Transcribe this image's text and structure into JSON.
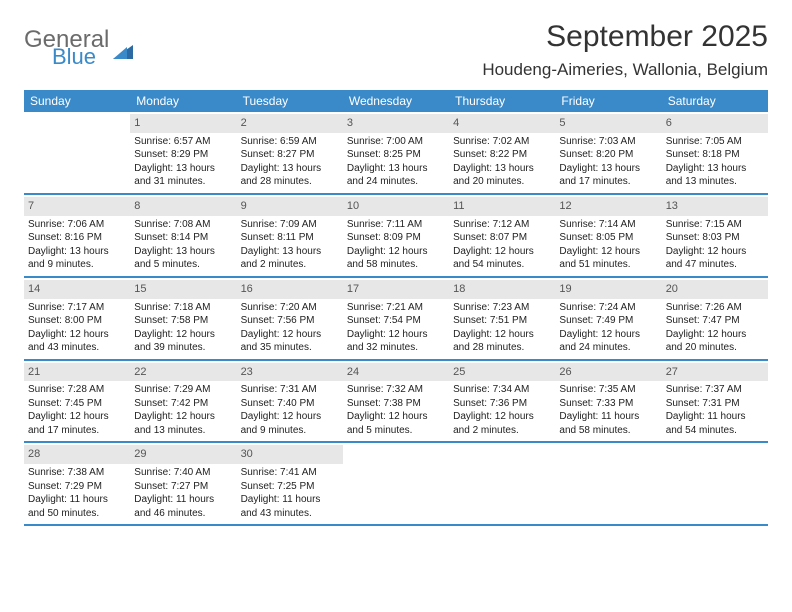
{
  "logo": {
    "text1": "General",
    "text2": "Blue"
  },
  "title": "September 2025",
  "location": "Houdeng-Aimeries, Wallonia, Belgium",
  "colors": {
    "header_bg": "#3a8ac9",
    "header_text": "#ffffff",
    "daynum_bg": "#e7e7e7",
    "daynum_text": "#555555",
    "body_text": "#222222",
    "border": "#3a8ac9"
  },
  "weekdays": [
    "Sunday",
    "Monday",
    "Tuesday",
    "Wednesday",
    "Thursday",
    "Friday",
    "Saturday"
  ],
  "weeks": [
    [
      {
        "n": "",
        "sunrise": "",
        "sunset": "",
        "daylight": ""
      },
      {
        "n": "1",
        "sunrise": "Sunrise: 6:57 AM",
        "sunset": "Sunset: 8:29 PM",
        "daylight": "Daylight: 13 hours and 31 minutes."
      },
      {
        "n": "2",
        "sunrise": "Sunrise: 6:59 AM",
        "sunset": "Sunset: 8:27 PM",
        "daylight": "Daylight: 13 hours and 28 minutes."
      },
      {
        "n": "3",
        "sunrise": "Sunrise: 7:00 AM",
        "sunset": "Sunset: 8:25 PM",
        "daylight": "Daylight: 13 hours and 24 minutes."
      },
      {
        "n": "4",
        "sunrise": "Sunrise: 7:02 AM",
        "sunset": "Sunset: 8:22 PM",
        "daylight": "Daylight: 13 hours and 20 minutes."
      },
      {
        "n": "5",
        "sunrise": "Sunrise: 7:03 AM",
        "sunset": "Sunset: 8:20 PM",
        "daylight": "Daylight: 13 hours and 17 minutes."
      },
      {
        "n": "6",
        "sunrise": "Sunrise: 7:05 AM",
        "sunset": "Sunset: 8:18 PM",
        "daylight": "Daylight: 13 hours and 13 minutes."
      }
    ],
    [
      {
        "n": "7",
        "sunrise": "Sunrise: 7:06 AM",
        "sunset": "Sunset: 8:16 PM",
        "daylight": "Daylight: 13 hours and 9 minutes."
      },
      {
        "n": "8",
        "sunrise": "Sunrise: 7:08 AM",
        "sunset": "Sunset: 8:14 PM",
        "daylight": "Daylight: 13 hours and 5 minutes."
      },
      {
        "n": "9",
        "sunrise": "Sunrise: 7:09 AM",
        "sunset": "Sunset: 8:11 PM",
        "daylight": "Daylight: 13 hours and 2 minutes."
      },
      {
        "n": "10",
        "sunrise": "Sunrise: 7:11 AM",
        "sunset": "Sunset: 8:09 PM",
        "daylight": "Daylight: 12 hours and 58 minutes."
      },
      {
        "n": "11",
        "sunrise": "Sunrise: 7:12 AM",
        "sunset": "Sunset: 8:07 PM",
        "daylight": "Daylight: 12 hours and 54 minutes."
      },
      {
        "n": "12",
        "sunrise": "Sunrise: 7:14 AM",
        "sunset": "Sunset: 8:05 PM",
        "daylight": "Daylight: 12 hours and 51 minutes."
      },
      {
        "n": "13",
        "sunrise": "Sunrise: 7:15 AM",
        "sunset": "Sunset: 8:03 PM",
        "daylight": "Daylight: 12 hours and 47 minutes."
      }
    ],
    [
      {
        "n": "14",
        "sunrise": "Sunrise: 7:17 AM",
        "sunset": "Sunset: 8:00 PM",
        "daylight": "Daylight: 12 hours and 43 minutes."
      },
      {
        "n": "15",
        "sunrise": "Sunrise: 7:18 AM",
        "sunset": "Sunset: 7:58 PM",
        "daylight": "Daylight: 12 hours and 39 minutes."
      },
      {
        "n": "16",
        "sunrise": "Sunrise: 7:20 AM",
        "sunset": "Sunset: 7:56 PM",
        "daylight": "Daylight: 12 hours and 35 minutes."
      },
      {
        "n": "17",
        "sunrise": "Sunrise: 7:21 AM",
        "sunset": "Sunset: 7:54 PM",
        "daylight": "Daylight: 12 hours and 32 minutes."
      },
      {
        "n": "18",
        "sunrise": "Sunrise: 7:23 AM",
        "sunset": "Sunset: 7:51 PM",
        "daylight": "Daylight: 12 hours and 28 minutes."
      },
      {
        "n": "19",
        "sunrise": "Sunrise: 7:24 AM",
        "sunset": "Sunset: 7:49 PM",
        "daylight": "Daylight: 12 hours and 24 minutes."
      },
      {
        "n": "20",
        "sunrise": "Sunrise: 7:26 AM",
        "sunset": "Sunset: 7:47 PM",
        "daylight": "Daylight: 12 hours and 20 minutes."
      }
    ],
    [
      {
        "n": "21",
        "sunrise": "Sunrise: 7:28 AM",
        "sunset": "Sunset: 7:45 PM",
        "daylight": "Daylight: 12 hours and 17 minutes."
      },
      {
        "n": "22",
        "sunrise": "Sunrise: 7:29 AM",
        "sunset": "Sunset: 7:42 PM",
        "daylight": "Daylight: 12 hours and 13 minutes."
      },
      {
        "n": "23",
        "sunrise": "Sunrise: 7:31 AM",
        "sunset": "Sunset: 7:40 PM",
        "daylight": "Daylight: 12 hours and 9 minutes."
      },
      {
        "n": "24",
        "sunrise": "Sunrise: 7:32 AM",
        "sunset": "Sunset: 7:38 PM",
        "daylight": "Daylight: 12 hours and 5 minutes."
      },
      {
        "n": "25",
        "sunrise": "Sunrise: 7:34 AM",
        "sunset": "Sunset: 7:36 PM",
        "daylight": "Daylight: 12 hours and 2 minutes."
      },
      {
        "n": "26",
        "sunrise": "Sunrise: 7:35 AM",
        "sunset": "Sunset: 7:33 PM",
        "daylight": "Daylight: 11 hours and 58 minutes."
      },
      {
        "n": "27",
        "sunrise": "Sunrise: 7:37 AM",
        "sunset": "Sunset: 7:31 PM",
        "daylight": "Daylight: 11 hours and 54 minutes."
      }
    ],
    [
      {
        "n": "28",
        "sunrise": "Sunrise: 7:38 AM",
        "sunset": "Sunset: 7:29 PM",
        "daylight": "Daylight: 11 hours and 50 minutes."
      },
      {
        "n": "29",
        "sunrise": "Sunrise: 7:40 AM",
        "sunset": "Sunset: 7:27 PM",
        "daylight": "Daylight: 11 hours and 46 minutes."
      },
      {
        "n": "30",
        "sunrise": "Sunrise: 7:41 AM",
        "sunset": "Sunset: 7:25 PM",
        "daylight": "Daylight: 11 hours and 43 minutes."
      },
      {
        "n": "",
        "sunrise": "",
        "sunset": "",
        "daylight": ""
      },
      {
        "n": "",
        "sunrise": "",
        "sunset": "",
        "daylight": ""
      },
      {
        "n": "",
        "sunrise": "",
        "sunset": "",
        "daylight": ""
      },
      {
        "n": "",
        "sunrise": "",
        "sunset": "",
        "daylight": ""
      }
    ]
  ]
}
